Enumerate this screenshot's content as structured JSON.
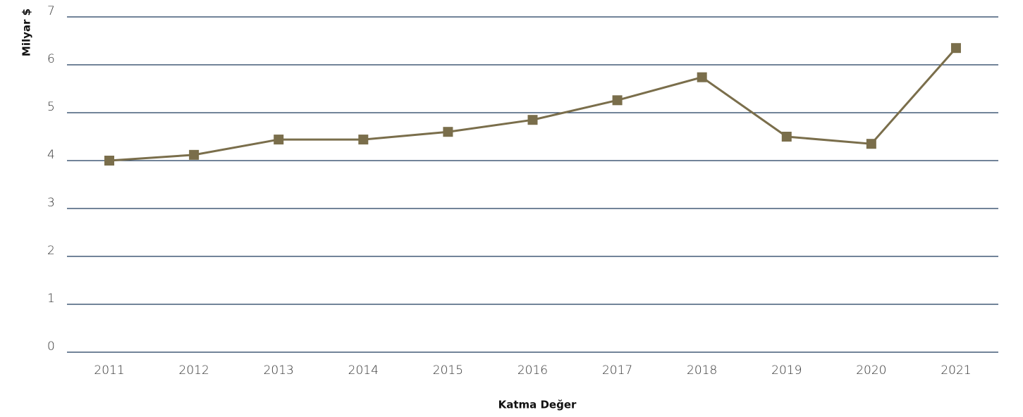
{
  "chart_data": {
    "type": "line",
    "x_label": "Katma Değer",
    "y_label": "Milyar $",
    "categories": [
      "2011",
      "2012",
      "2013",
      "2014",
      "2015",
      "2016",
      "2017",
      "2018",
      "2019",
      "2020",
      "2021"
    ],
    "series": [
      {
        "name": "Katma Değer",
        "color": "#7a6e4b",
        "values": [
          4.0,
          4.12,
          4.44,
          4.44,
          4.6,
          4.85,
          5.26,
          5.74,
          4.5,
          4.35,
          6.35
        ]
      }
    ],
    "ylim": [
      0,
      7
    ],
    "yticks": [
      0,
      1,
      2,
      3,
      4,
      5,
      6,
      7
    ],
    "grid": true
  }
}
